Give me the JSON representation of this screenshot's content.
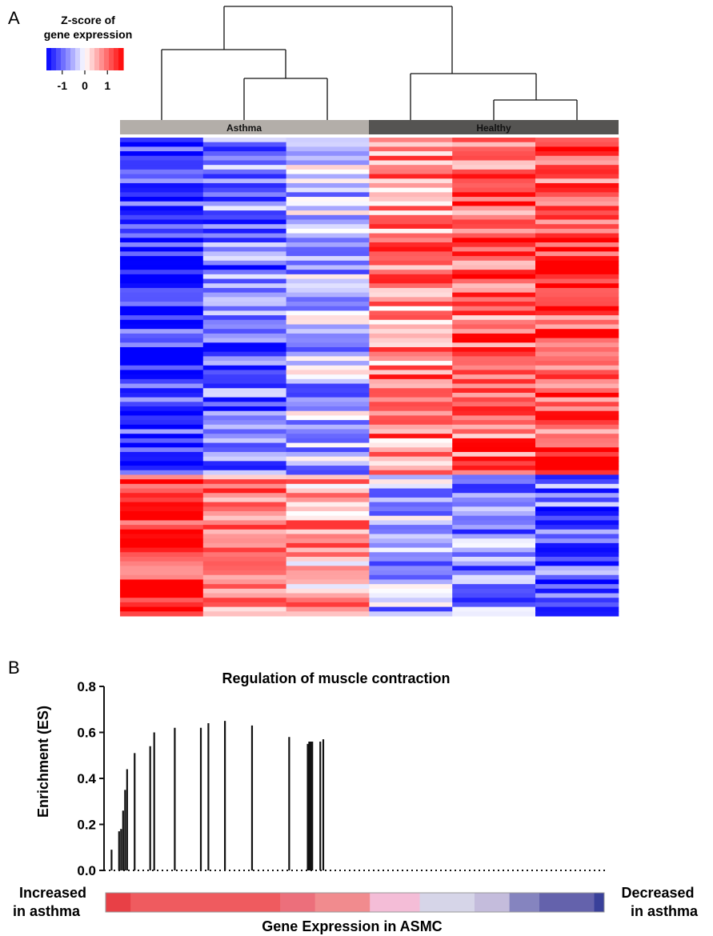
{
  "panel_a": {
    "panel_label": "A",
    "legend": {
      "title_line1": "Z-score of",
      "title_line2": "gene expression",
      "ticks": [
        "-1",
        "0",
        "1"
      ],
      "scale_min": -1.7,
      "scale_max": 1.7
    },
    "groups": [
      {
        "label": "Asthma",
        "color": "#b3aea9"
      },
      {
        "label": "Healthy",
        "color": "#555452"
      }
    ]
  },
  "panel_b": {
    "panel_label": "B",
    "left_caption_line1": "Increased",
    "left_caption_line2": "in asthma",
    "right_caption_line1": "Decreased",
    "right_caption_line2": "in asthma",
    "gradient_colors": [
      "#e84046",
      "#ef5b5f",
      "#ef5b5f",
      "#ec6f7b",
      "#f18b8e",
      "#f4bdd7",
      "#d6d5e8",
      "#c4bcdc",
      "#8584bf",
      "#6462ac",
      "#6462ac",
      "#39409a"
    ]
  },
  "chart_data": [
    {
      "type": "heatmap",
      "title": "",
      "xlabel": "",
      "ylabel": "",
      "groups": [
        "Asthma",
        "Healthy"
      ],
      "columns_per_group": [
        3,
        3
      ],
      "n_rows": 105,
      "colorbar": {
        "label": "Z-score of gene expression",
        "ticks": [
          -1,
          0,
          1
        ],
        "low_color": "#0000ff",
        "mid_color": "#ffffff",
        "high_color": "#ff0000"
      },
      "dendrogram": "columns clustered into Asthma (3) and Healthy (3)"
    },
    {
      "type": "bar",
      "title": "Regulation of muscle contraction",
      "xlabel": "Gene Expression in ASMC",
      "ylabel": "Enrichment (ES)",
      "ylim": [
        0,
        0.8
      ],
      "yticks": [
        "0.0",
        "0.2",
        "0.4",
        "0.6",
        "0.8"
      ],
      "x_rank_range": [
        0,
        100
      ],
      "hits": [
        {
          "rank": 1.5,
          "es": 0.09
        },
        {
          "rank": 3.0,
          "es": 0.17
        },
        {
          "rank": 3.4,
          "es": 0.18
        },
        {
          "rank": 3.8,
          "es": 0.26
        },
        {
          "rank": 4.2,
          "es": 0.35
        },
        {
          "rank": 4.6,
          "es": 0.44
        },
        {
          "rank": 6.1,
          "es": 0.51
        },
        {
          "rank": 9.2,
          "es": 0.54
        },
        {
          "rank": 10.0,
          "es": 0.6
        },
        {
          "rank": 14.1,
          "es": 0.62
        },
        {
          "rank": 19.3,
          "es": 0.62
        },
        {
          "rank": 20.8,
          "es": 0.64
        },
        {
          "rank": 24.1,
          "es": 0.65
        },
        {
          "rank": 29.5,
          "es": 0.63
        },
        {
          "rank": 36.9,
          "es": 0.58
        },
        {
          "rank": 40.6,
          "es": 0.55
        },
        {
          "rank": 40.9,
          "es": 0.56
        },
        {
          "rank": 41.2,
          "es": 0.56
        },
        {
          "rank": 41.5,
          "es": 0.56
        },
        {
          "rank": 43.1,
          "es": 0.56
        },
        {
          "rank": 43.7,
          "es": 0.57
        }
      ]
    }
  ]
}
